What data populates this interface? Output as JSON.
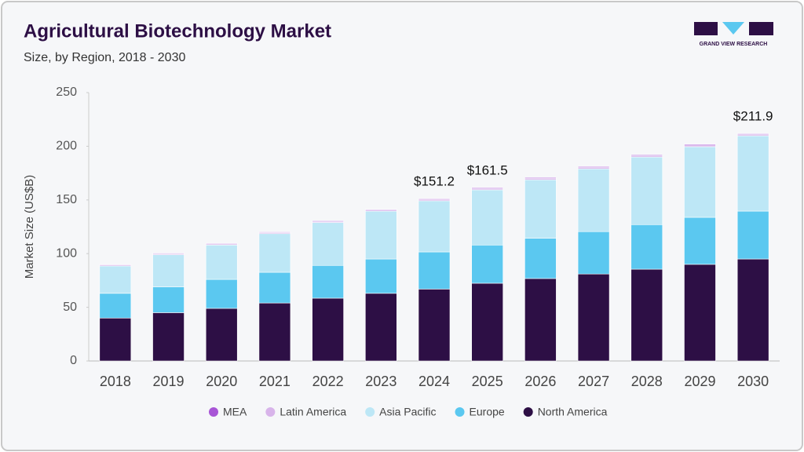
{
  "brand": "GRAND VIEW RESEARCH",
  "chart_data": {
    "type": "stacked-bar",
    "title": "Agricultural Biotechnology Market",
    "subtitle": "Size, by Region, 2018 - 2030",
    "y_label": "Market Size (US$B)",
    "categories": [
      "2018",
      "2019",
      "2020",
      "2021",
      "2022",
      "2023",
      "2024",
      "2025",
      "2026",
      "2027",
      "2028",
      "2029",
      "2030"
    ],
    "series": [
      {
        "name": "North America",
        "color": "#2d0f45",
        "values": [
          40,
          45,
          49,
          54,
          58.5,
          63,
          67,
          72.4,
          76.8,
          81,
          85.5,
          90,
          95
        ]
      },
      {
        "name": "Europe",
        "color": "#5bc8f0",
        "values": [
          23,
          24,
          27,
          28.6,
          30.5,
          32,
          34.6,
          35.6,
          37.5,
          39.5,
          41.5,
          43.8,
          44.6
        ]
      },
      {
        "name": "Asia Pacific",
        "color": "#bde7f6",
        "values": [
          25.5,
          30,
          32,
          36,
          40,
          44.6,
          47.6,
          51.4,
          54.5,
          58.5,
          63,
          65.8,
          70.2
        ]
      },
      {
        "name": "Latin America",
        "color": "#d8b4ea",
        "values": [
          1,
          1,
          1,
          1,
          1.1,
          1.1,
          1.4,
          1.4,
          1.4,
          1.5,
          1.5,
          1.6,
          1.5
        ]
      },
      {
        "name": "MEA",
        "color": "#a855d6",
        "values": [
          0.5,
          0.5,
          0.6,
          0.6,
          0.6,
          0.6,
          0.6,
          0.7,
          0.7,
          0.7,
          0.7,
          0.8,
          0.6
        ]
      }
    ],
    "total_labels": [
      null,
      null,
      null,
      null,
      null,
      null,
      "$151.2",
      "$161.5",
      null,
      null,
      null,
      null,
      "$211.9"
    ],
    "ylim": [
      0,
      250
    ],
    "yticks": [
      0,
      50,
      100,
      150,
      200,
      250
    ],
    "grid": false,
    "legend": "bottom"
  }
}
